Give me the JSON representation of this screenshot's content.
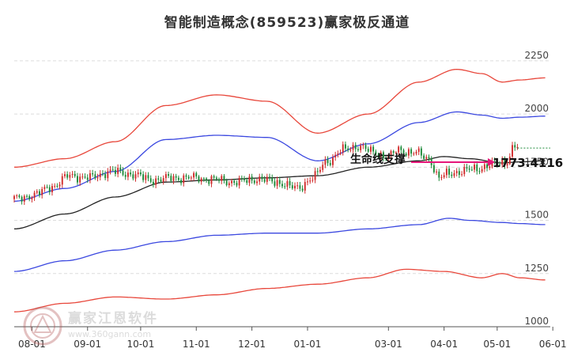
{
  "title": "智能制造概念(859523)赢家极反通道",
  "watermark": {
    "text": "赢家江恩软件",
    "sub": "www.360gann.com"
  },
  "chart_data": {
    "type": "candlestick-channel",
    "title": "智能制造概念(859523)赢家极反通道",
    "y_ticks": [
      1000,
      1250,
      1500,
      1750,
      2000,
      2250
    ],
    "ylim": [
      1000,
      2350
    ],
    "x_ticks": [
      "08-01",
      "09-01",
      "10-01",
      "11-01",
      "12-01",
      "01-01",
      "03-01",
      "04-01",
      "05-01",
      "06-01"
    ],
    "x_tick_index": [
      7,
      29,
      50,
      72,
      94,
      116,
      148,
      170,
      191,
      213
    ],
    "n_bars": 200,
    "price": {
      "anchors": [
        [
          0,
          1600
        ],
        [
          8,
          1620
        ],
        [
          15,
          1660
        ],
        [
          22,
          1710
        ],
        [
          30,
          1700
        ],
        [
          38,
          1730
        ],
        [
          45,
          1720
        ],
        [
          55,
          1690
        ],
        [
          63,
          1700
        ],
        [
          72,
          1700
        ],
        [
          80,
          1690
        ],
        [
          88,
          1680
        ],
        [
          96,
          1695
        ],
        [
          104,
          1680
        ],
        [
          112,
          1650
        ],
        [
          118,
          1700
        ],
        [
          124,
          1780
        ],
        [
          130,
          1830
        ],
        [
          136,
          1850
        ],
        [
          142,
          1820
        ],
        [
          148,
          1800
        ],
        [
          152,
          1830
        ],
        [
          158,
          1820
        ],
        [
          164,
          1790
        ],
        [
          168,
          1700
        ],
        [
          172,
          1720
        ],
        [
          176,
          1730
        ],
        [
          182,
          1740
        ],
        [
          188,
          1760
        ],
        [
          194,
          1770
        ],
        [
          198,
          1850
        ],
        [
          200,
          1840
        ]
      ],
      "last": 1840
    },
    "series": [
      {
        "name": "outer_upper",
        "color": "#e8473b",
        "anchors": [
          [
            0,
            1750
          ],
          [
            20,
            1790
          ],
          [
            40,
            1870
          ],
          [
            60,
            2040
          ],
          [
            80,
            2090
          ],
          [
            100,
            2060
          ],
          [
            120,
            1910
          ],
          [
            140,
            2000
          ],
          [
            160,
            2150
          ],
          [
            175,
            2210
          ],
          [
            185,
            2190
          ],
          [
            193,
            2150
          ],
          [
            200,
            2160
          ],
          [
            210,
            2170
          ]
        ]
      },
      {
        "name": "inner_upper",
        "color": "#3b48e0",
        "anchors": [
          [
            0,
            1590
          ],
          [
            20,
            1650
          ],
          [
            40,
            1730
          ],
          [
            60,
            1880
          ],
          [
            80,
            1900
          ],
          [
            100,
            1890
          ],
          [
            120,
            1780
          ],
          [
            140,
            1860
          ],
          [
            160,
            1960
          ],
          [
            175,
            2010
          ],
          [
            185,
            1995
          ],
          [
            193,
            1980
          ],
          [
            200,
            1985
          ],
          [
            210,
            1990
          ]
        ]
      },
      {
        "name": "middle",
        "color": "#222222",
        "anchors": [
          [
            0,
            1460
          ],
          [
            20,
            1530
          ],
          [
            40,
            1610
          ],
          [
            60,
            1680
          ],
          [
            80,
            1690
          ],
          [
            100,
            1700
          ],
          [
            120,
            1710
          ],
          [
            140,
            1750
          ],
          [
            160,
            1780
          ],
          [
            170,
            1800
          ],
          [
            180,
            1790
          ],
          [
            193,
            1770
          ],
          [
            200,
            1775
          ],
          [
            210,
            1780
          ]
        ]
      },
      {
        "name": "inner_lower",
        "color": "#3b48e0",
        "anchors": [
          [
            0,
            1260
          ],
          [
            20,
            1310
          ],
          [
            40,
            1360
          ],
          [
            60,
            1400
          ],
          [
            80,
            1430
          ],
          [
            100,
            1440
          ],
          [
            120,
            1440
          ],
          [
            140,
            1460
          ],
          [
            160,
            1480
          ],
          [
            172,
            1510
          ],
          [
            180,
            1500
          ],
          [
            193,
            1490
          ],
          [
            200,
            1485
          ],
          [
            210,
            1480
          ]
        ]
      },
      {
        "name": "outer_lower",
        "color": "#e8473b",
        "anchors": [
          [
            0,
            1070
          ],
          [
            20,
            1110
          ],
          [
            40,
            1140
          ],
          [
            60,
            1130
          ],
          [
            80,
            1150
          ],
          [
            100,
            1180
          ],
          [
            120,
            1200
          ],
          [
            140,
            1230
          ],
          [
            155,
            1270
          ],
          [
            170,
            1260
          ],
          [
            185,
            1230
          ],
          [
            193,
            1250
          ],
          [
            200,
            1230
          ],
          [
            210,
            1220
          ]
        ]
      }
    ],
    "annotation": {
      "label": "生命线支撑",
      "value": "1773.4116",
      "color": "#e6177a",
      "value_at": 1773.4116
    },
    "up_color": "#d12d2d",
    "down_color": "#1f8a3a",
    "dashed_line_color": "#1f8a3a"
  }
}
